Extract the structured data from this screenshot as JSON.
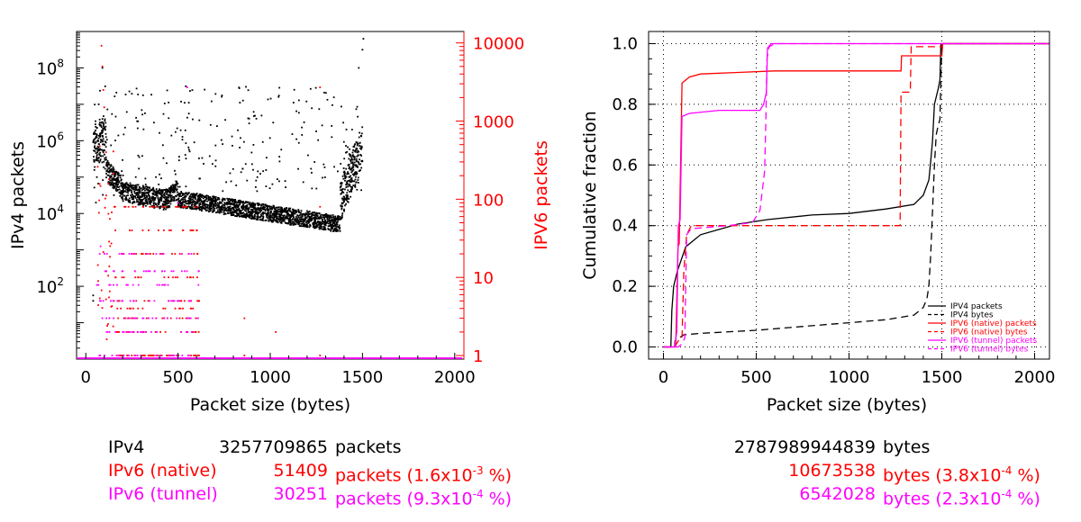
{
  "chart_data": [
    {
      "type": "scatter",
      "xlabel": "Packet size (bytes)",
      "ylabel_left": "IPv4 packets",
      "ylabel_right": "IPV6 packets",
      "xlim": [
        -50,
        2050
      ],
      "xticks": [
        0,
        500,
        1000,
        1500,
        2000
      ],
      "ylim_left": [
        1,
        1000000000
      ],
      "yscale_left": "log",
      "yticks_left": [
        {
          "value": 100,
          "base": "10",
          "exp": "2"
        },
        {
          "value": 10000,
          "base": "10",
          "exp": "4"
        },
        {
          "value": 1000000,
          "base": "10",
          "exp": "6"
        },
        {
          "value": 100000000,
          "base": "10",
          "exp": "8"
        }
      ],
      "ylim_right": [
        0.9,
        14000
      ],
      "yscale_right": "log",
      "yticks_right": [
        {
          "value": 1,
          "label": "1"
        },
        {
          "value": 10,
          "label": "10"
        },
        {
          "value": 100,
          "label": "100"
        },
        {
          "value": 1000,
          "label": "1000"
        },
        {
          "value": 10000,
          "label": "10000"
        }
      ],
      "series": [
        {
          "name": "IPv4",
          "color": "#000000",
          "axis": "left"
        },
        {
          "name": "IPv6 (native)",
          "color": "#ff0000",
          "axis": "right"
        },
        {
          "name": "IPv6 (tunnel)",
          "color": "#ff00ff",
          "axis": "right"
        }
      ]
    },
    {
      "type": "line",
      "xlabel": "Packet size (bytes)",
      "ylabel": "Cumulative fraction",
      "xlim": [
        -80,
        2080
      ],
      "xticks": [
        0,
        500,
        1000,
        1500,
        2000
      ],
      "ylim": [
        -0.04,
        1.04
      ],
      "yticks": [
        0.0,
        0.2,
        0.4,
        0.6,
        0.8,
        1.0
      ],
      "ytick_labels": [
        "0.0",
        "0.2",
        "0.4",
        "0.6",
        "0.8",
        "1.0"
      ],
      "grid": true,
      "legend_position": "bottom-right",
      "series": [
        {
          "name": "IPV4 packets",
          "color": "#000000",
          "dash": "solid",
          "points": [
            [
              0,
              0
            ],
            [
              40,
              0
            ],
            [
              45,
              0.12
            ],
            [
              55,
              0.2
            ],
            [
              75,
              0.25
            ],
            [
              120,
              0.33
            ],
            [
              200,
              0.37
            ],
            [
              400,
              0.405
            ],
            [
              560,
              0.42
            ],
            [
              800,
              0.435
            ],
            [
              1000,
              0.44
            ],
            [
              1200,
              0.455
            ],
            [
              1350,
              0.47
            ],
            [
              1400,
              0.5
            ],
            [
              1430,
              0.55
            ],
            [
              1440,
              0.61
            ],
            [
              1450,
              0.68
            ],
            [
              1460,
              0.8
            ],
            [
              1480,
              0.85
            ],
            [
              1490,
              0.88
            ],
            [
              1495,
              1.0
            ],
            [
              2080,
              1.0
            ]
          ]
        },
        {
          "name": "IPV4 bytes",
          "color": "#000000",
          "dash": "dashed",
          "points": [
            [
              0,
              0
            ],
            [
              60,
              0
            ],
            [
              62,
              0.02
            ],
            [
              110,
              0.04
            ],
            [
              200,
              0.045
            ],
            [
              500,
              0.055
            ],
            [
              800,
              0.07
            ],
            [
              1000,
              0.08
            ],
            [
              1200,
              0.09
            ],
            [
              1350,
              0.105
            ],
            [
              1400,
              0.13
            ],
            [
              1420,
              0.16
            ],
            [
              1430,
              0.2
            ],
            [
              1440,
              0.3
            ],
            [
              1450,
              0.45
            ],
            [
              1460,
              0.6
            ],
            [
              1470,
              0.7
            ],
            [
              1480,
              0.73
            ],
            [
              1490,
              0.75
            ],
            [
              1500,
              1.0
            ],
            [
              2080,
              1.0
            ]
          ]
        },
        {
          "name": "IPV6 (native) packets",
          "color": "#ff0000",
          "dash": "solid",
          "points": [
            [
              0,
              0
            ],
            [
              65,
              0
            ],
            [
              68,
              0.05
            ],
            [
              78,
              0.33
            ],
            [
              85,
              0.34
            ],
            [
              100,
              0.87
            ],
            [
              140,
              0.89
            ],
            [
              200,
              0.9
            ],
            [
              400,
              0.905
            ],
            [
              600,
              0.91
            ],
            [
              1280,
              0.91
            ],
            [
              1283,
              0.96
            ],
            [
              1500,
              0.96
            ],
            [
              1505,
              1.0
            ],
            [
              2080,
              1.0
            ]
          ]
        },
        {
          "name": "IPV6 (native) bytes",
          "color": "#ff0000",
          "dash": "dashed",
          "points": [
            [
              0,
              0
            ],
            [
              60,
              0
            ],
            [
              80,
              0.02
            ],
            [
              100,
              0.03
            ],
            [
              110,
              0.25
            ],
            [
              125,
              0.37
            ],
            [
              150,
              0.4
            ],
            [
              1275,
              0.4
            ],
            [
              1280,
              0.84
            ],
            [
              1330,
              0.84
            ],
            [
              1335,
              0.99
            ],
            [
              1500,
              0.99
            ],
            [
              1505,
              1.0
            ],
            [
              2080,
              1.0
            ]
          ]
        },
        {
          "name": "IPV6 (tunnel) packets",
          "color": "#ff00ff",
          "dash": "solid",
          "points": [
            [
              0,
              0
            ],
            [
              60,
              0
            ],
            [
              72,
              0.05
            ],
            [
              80,
              0.4
            ],
            [
              90,
              0.42
            ],
            [
              100,
              0.76
            ],
            [
              140,
              0.77
            ],
            [
              300,
              0.78
            ],
            [
              520,
              0.78
            ],
            [
              540,
              0.8
            ],
            [
              555,
              0.84
            ],
            [
              560,
              0.985
            ],
            [
              580,
              1.0
            ],
            [
              2080,
              1.0
            ]
          ]
        },
        {
          "name": "IPV6 (tunnel) bytes",
          "color": "#ff00ff",
          "dash": "dashed",
          "points": [
            [
              0,
              0
            ],
            [
              80,
              0
            ],
            [
              100,
              0.01
            ],
            [
              115,
              0.03
            ],
            [
              125,
              0.37
            ],
            [
              150,
              0.39
            ],
            [
              350,
              0.4
            ],
            [
              480,
              0.41
            ],
            [
              520,
              0.45
            ],
            [
              545,
              0.58
            ],
            [
              552,
              0.75
            ],
            [
              558,
              0.95
            ],
            [
              570,
              0.99
            ],
            [
              600,
              1.0
            ],
            [
              2080,
              1.0
            ]
          ]
        }
      ]
    }
  ],
  "summary": {
    "rows": [
      {
        "name": "IPv4",
        "packets": "3257709865",
        "packets_suffix": "packets",
        "bytes": "2787989944839",
        "bytes_suffix": "bytes",
        "color": "#000000"
      },
      {
        "name": "IPv6 (native)",
        "packets": "51409",
        "packets_suffix": "packets (1.6x10",
        "packets_exp": "-3",
        "packets_tail": " %)",
        "bytes": "10673538",
        "bytes_suffix": "bytes (3.8x10",
        "bytes_exp": "-4",
        "bytes_tail": " %)",
        "color": "#ff0000"
      },
      {
        "name": "IPv6 (tunnel)",
        "packets": "30251",
        "packets_suffix": "packets (9.3x10",
        "packets_exp": "-4",
        "packets_tail": " %)",
        "bytes": "6542028",
        "bytes_suffix": "bytes (2.3x10",
        "bytes_exp": "-4",
        "bytes_tail": " %)",
        "color": "#ff00ff"
      }
    ]
  }
}
